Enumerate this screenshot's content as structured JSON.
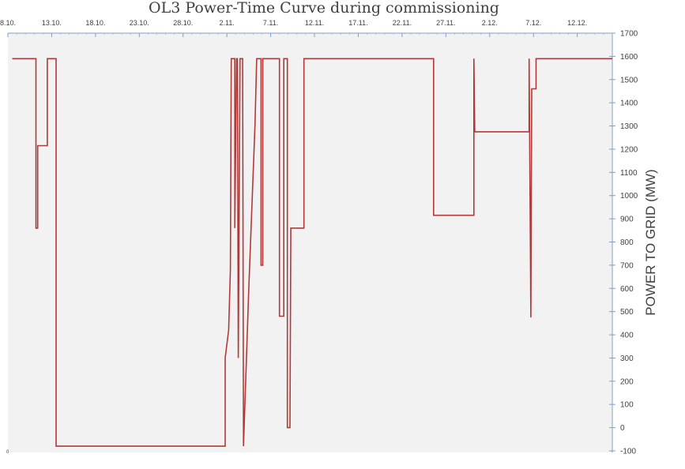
{
  "chart_data": {
    "type": "line",
    "title": "OL3 Power-Time Curve during commissioning",
    "xlabel": "",
    "ylabel": "POWER TO GRID (MW)",
    "x_ticks": [
      "8.10.",
      "13.10.",
      "18.10.",
      "23.10.",
      "28.10.",
      "2.11.",
      "7.11.",
      "12.11.",
      "17.11.",
      "22.11.",
      "27.11.",
      "2.12.",
      "7.12.",
      "12.12."
    ],
    "y_ticks": [
      "-100",
      "0",
      "100",
      "200",
      "300",
      "400",
      "500",
      "600",
      "700",
      "800",
      "900",
      "1000",
      "1100",
      "1200",
      "1300",
      "1400",
      "1500",
      "1600",
      "1700"
    ],
    "ylim": [
      -100,
      1700
    ],
    "x_unit": "days since 8.10.",
    "xlim": [
      0,
      69
    ],
    "corner_label": "0",
    "grid": false,
    "legend": "none",
    "series": [
      {
        "color": "#b03a3a",
        "points": [
          [
            0.5,
            1590
          ],
          [
            3.2,
            1590
          ],
          [
            3.2,
            860
          ],
          [
            3.4,
            860
          ],
          [
            3.4,
            1215
          ],
          [
            4.5,
            1215
          ],
          [
            4.5,
            1590
          ],
          [
            5.0,
            1590
          ],
          [
            5.0,
            1590
          ],
          [
            5.5,
            1590
          ],
          [
            5.5,
            -80
          ],
          [
            24.8,
            -80
          ],
          [
            24.8,
            300
          ],
          [
            25.2,
            420
          ],
          [
            25.4,
            680
          ],
          [
            25.5,
            1590
          ],
          [
            25.9,
            1590
          ],
          [
            25.9,
            860
          ],
          [
            26.1,
            1590
          ],
          [
            26.2,
            1590
          ],
          [
            26.3,
            300
          ],
          [
            26.5,
            1590
          ],
          [
            26.8,
            1590
          ],
          [
            26.9,
            -80
          ],
          [
            27.5,
            600
          ],
          [
            28.2,
            1300
          ],
          [
            28.4,
            1590
          ],
          [
            28.9,
            1590
          ],
          [
            28.9,
            700
          ],
          [
            29.1,
            700
          ],
          [
            29.1,
            1590
          ],
          [
            31.0,
            1590
          ],
          [
            31.0,
            480
          ],
          [
            31.5,
            480
          ],
          [
            31.5,
            1590
          ],
          [
            31.9,
            1590
          ],
          [
            31.9,
            0
          ],
          [
            32.2,
            0
          ],
          [
            32.3,
            860
          ],
          [
            33.8,
            860
          ],
          [
            33.8,
            1590
          ],
          [
            48.6,
            1590
          ],
          [
            48.6,
            915
          ],
          [
            53.2,
            915
          ],
          [
            53.2,
            1590
          ],
          [
            53.3,
            1275
          ],
          [
            59.5,
            1275
          ],
          [
            59.5,
            1590
          ],
          [
            59.7,
            475
          ],
          [
            59.8,
            1460
          ],
          [
            60.3,
            1460
          ],
          [
            60.3,
            1590
          ],
          [
            69.0,
            1590
          ]
        ]
      }
    ]
  }
}
